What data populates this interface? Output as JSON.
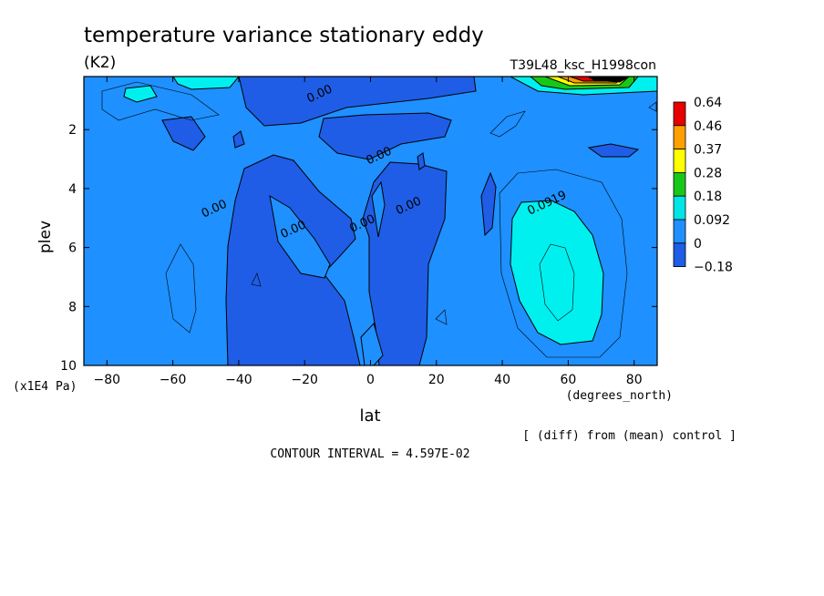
{
  "header": {
    "title": "temperature variance stationary eddy",
    "units": "(K2)",
    "run": "T39L48_ksc_H1998con"
  },
  "footer": {
    "diff_note": "[ (diff) from (mean) control ]",
    "contour_interval": "CONTOUR INTERVAL = 4.597E-02"
  },
  "chart_data": {
    "type": "heatmap",
    "title": "temperature variance stationary eddy",
    "xlabel": "lat",
    "xunits": "(degrees_north)",
    "ylabel": "plev",
    "yunits": "(x1E4 Pa)",
    "xlim": [
      -87,
      87
    ],
    "ylim": [
      10,
      0.2
    ],
    "x_ticks": [
      -80,
      -60,
      -40,
      -20,
      0,
      20,
      40,
      60,
      80
    ],
    "x_tick_labels": [
      "−80",
      "−60",
      "−40",
      "−20",
      "0",
      "20",
      "40",
      "60",
      "80"
    ],
    "y_ticks": [
      2,
      4,
      6,
      8,
      10
    ],
    "y_tick_labels": [
      "2",
      "4",
      "6",
      "8",
      "10"
    ],
    "colorbar": {
      "labels": [
        "0.64",
        "0.46",
        "0.37",
        "0.28",
        "0.18",
        "0.092",
        "0",
        "−0.18"
      ],
      "colors": [
        "#1f5de6",
        "#1e90ff",
        "#00e5e5",
        "#18c818",
        "#ffff00",
        "#ffa000",
        "#e60000"
      ]
    },
    "contour_labels": [
      {
        "text": "0.00",
        "lat": -15,
        "plev": 0.9
      },
      {
        "text": "0.00",
        "lat": 3,
        "plev": 3.0
      },
      {
        "text": "0.00",
        "lat": -47,
        "plev": 4.8
      },
      {
        "text": "0.00",
        "lat": -23,
        "plev": 5.5
      },
      {
        "text": "0.00",
        "lat": -2,
        "plev": 5.3
      },
      {
        "text": "0.00",
        "lat": 12,
        "plev": 4.7
      },
      {
        "text": "0.0919",
        "lat": 54,
        "plev": 4.6
      }
    ]
  }
}
